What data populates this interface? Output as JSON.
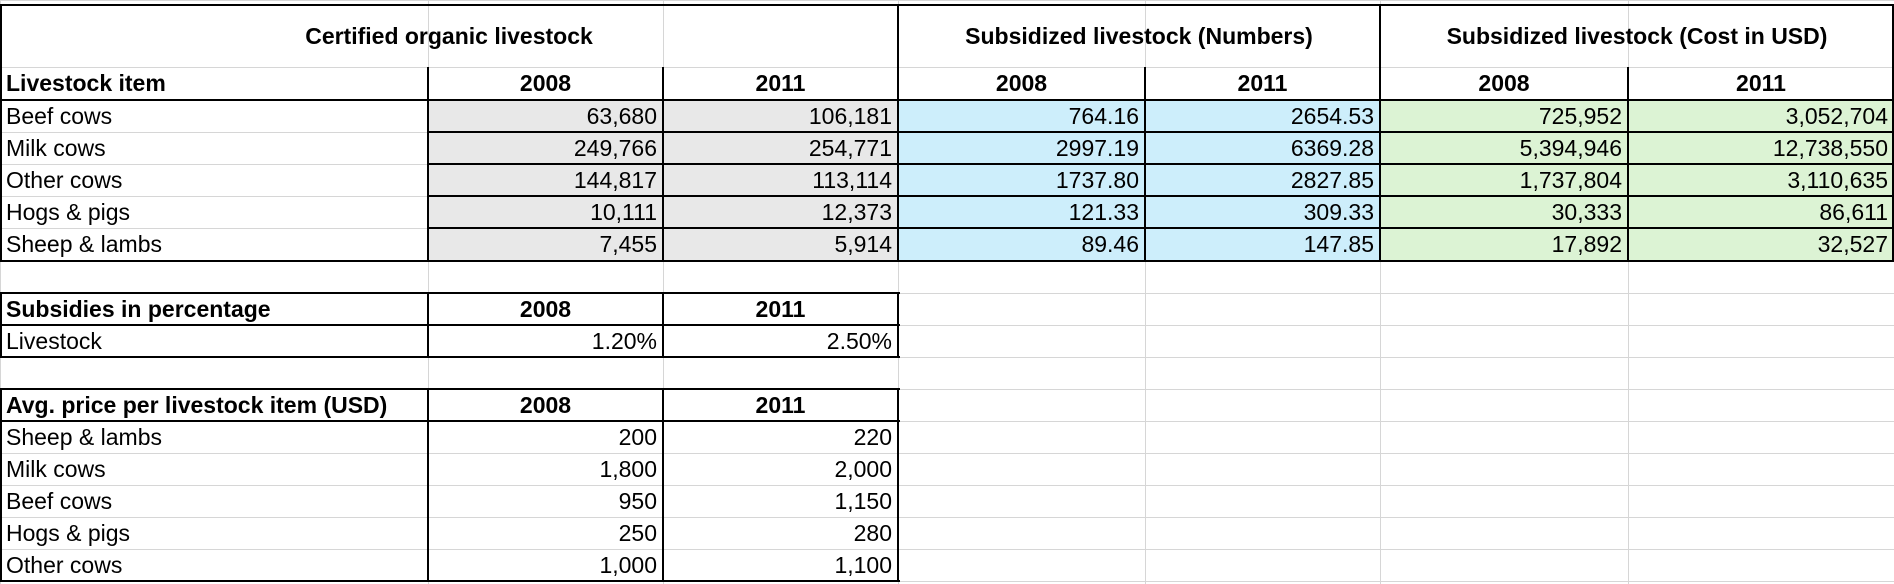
{
  "colors": {
    "gray_fill": "#e8e8e8",
    "blue_fill": "#cdeefb",
    "green_fill": "#dcf3d4",
    "grid": "#d6d6d6"
  },
  "section1": {
    "certified_title": "Certified organic livestock",
    "subsidized_numbers_title": "Subsidized livestock (Numbers)",
    "subsidized_cost_title": "Subsidized livestock (Cost in USD)",
    "item_header": "Livestock item",
    "years": [
      "2008",
      "2011",
      "2008",
      "2011",
      "2008",
      "2011"
    ],
    "rows": [
      {
        "item": "Beef cows",
        "cert": [
          "63,680",
          "106,181"
        ],
        "num": [
          "764.16",
          "2654.53"
        ],
        "cost": [
          "725,952",
          "3,052,704"
        ]
      },
      {
        "item": "Milk cows",
        "cert": [
          "249,766",
          "254,771"
        ],
        "num": [
          "2997.19",
          "6369.28"
        ],
        "cost": [
          "5,394,946",
          "12,738,550"
        ]
      },
      {
        "item": "Other cows",
        "cert": [
          "144,817",
          "113,114"
        ],
        "num": [
          "1737.80",
          "2827.85"
        ],
        "cost": [
          "1,737,804",
          "3,110,635"
        ]
      },
      {
        "item": "Hogs & pigs",
        "cert": [
          "10,111",
          "12,373"
        ],
        "num": [
          "121.33",
          "309.33"
        ],
        "cost": [
          "30,333",
          "86,611"
        ]
      },
      {
        "item": "Sheep & lambs",
        "cert": [
          "7,455",
          "5,914"
        ],
        "num": [
          "89.46",
          "147.85"
        ],
        "cost": [
          "17,892",
          "32,527"
        ]
      }
    ]
  },
  "section2": {
    "header": "Subsidies in percentage",
    "years": [
      "2008",
      "2011"
    ],
    "row": {
      "item": "Livestock",
      "values": [
        "1.20%",
        "2.50%"
      ]
    }
  },
  "section3": {
    "header": "Avg. price per livestock item (USD)",
    "years": [
      "2008",
      "2011"
    ],
    "rows": [
      {
        "item": "Sheep & lambs",
        "values": [
          "200",
          "220"
        ]
      },
      {
        "item": "Milk cows",
        "values": [
          "1,800",
          "2,000"
        ]
      },
      {
        "item": "Beef cows",
        "values": [
          "950",
          "1,150"
        ]
      },
      {
        "item": "Hogs & pigs",
        "values": [
          "250",
          "280"
        ]
      },
      {
        "item": "Other cows",
        "values": [
          "1,000",
          "1,100"
        ]
      }
    ]
  }
}
